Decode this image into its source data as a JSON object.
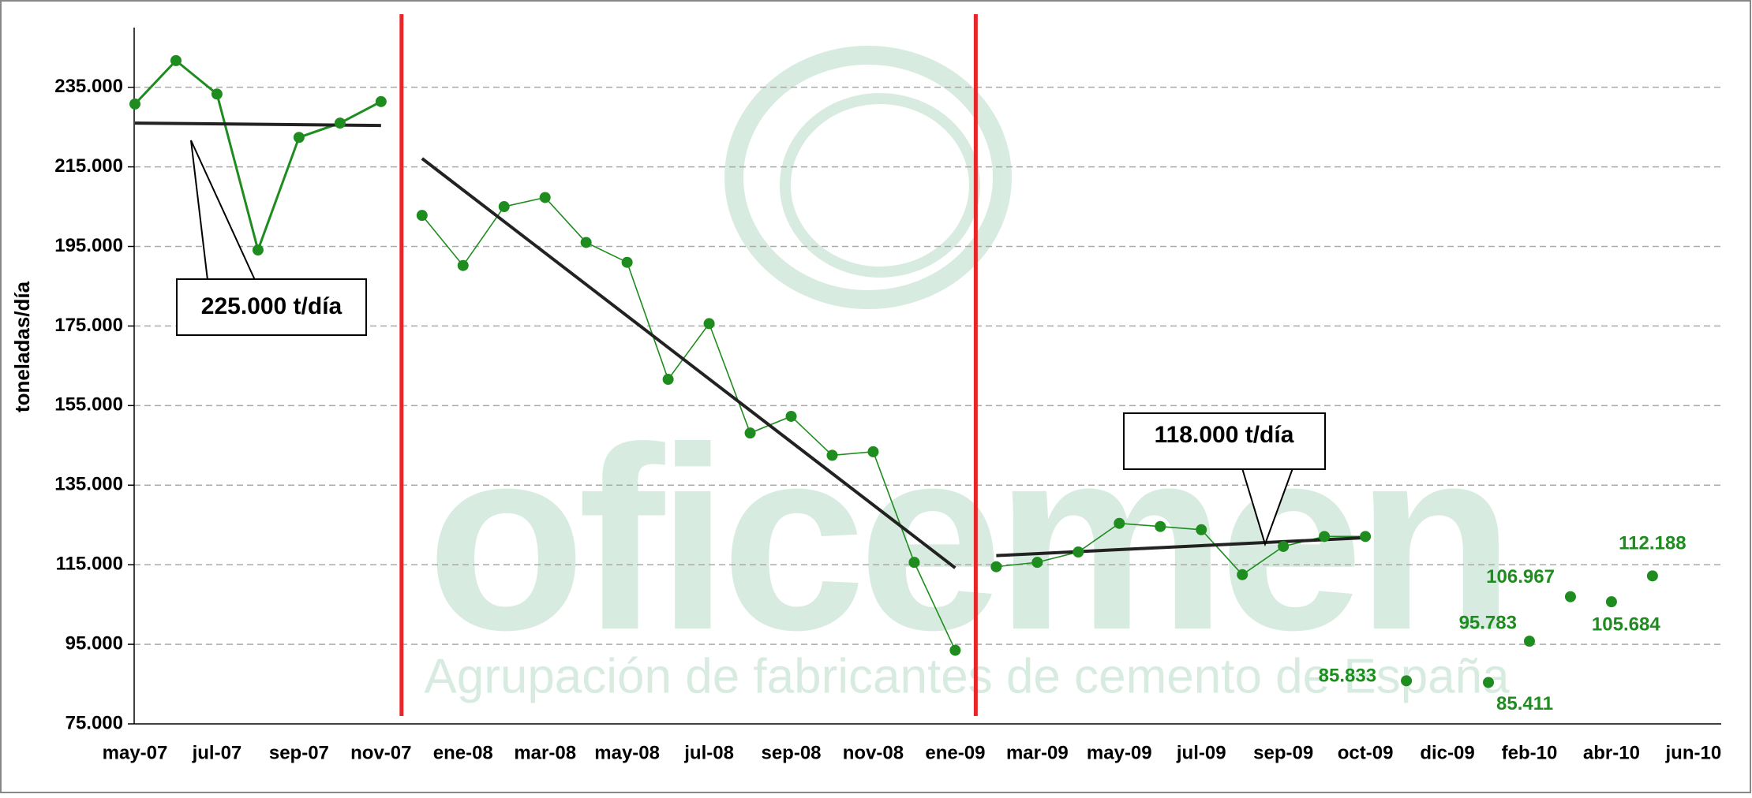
{
  "chart_data": {
    "type": "line",
    "y_label": "toneladas/día",
    "watermark": {
      "logo": "oficemen",
      "tagline": "Agrupación de fabricantes de cemento de España"
    },
    "categories": [
      "may-07",
      null,
      "jul-07",
      null,
      "sep-07",
      null,
      "nov-07",
      null,
      "ene-08",
      null,
      "mar-08",
      null,
      "may-08",
      null,
      "jul-08",
      null,
      "sep-08",
      null,
      "nov-08",
      null,
      "ene-09",
      null,
      "mar-09",
      null,
      "may-09",
      null,
      "jul-09",
      null,
      "sep-09",
      null,
      "oct-09",
      null,
      "dic-09",
      null,
      "feb-10",
      null,
      "abr-10",
      null,
      "jun-10"
    ],
    "series": [
      {
        "color": "#1e8c1e",
        "values": [
          230800,
          241700,
          233300,
          194100,
          222400,
          226000,
          231400,
          null,
          null,
          null,
          null,
          null,
          null,
          null,
          null,
          null,
          null,
          null,
          null,
          null,
          null,
          null,
          null,
          null,
          null,
          null,
          null,
          null,
          null,
          null,
          null,
          null,
          null,
          null,
          null,
          null,
          null,
          null,
          null
        ],
        "trend": [
          226000,
          225400
        ]
      },
      {
        "color": "#1e8c1e",
        "values": [
          null,
          null,
          null,
          null,
          null,
          null,
          null,
          202800,
          190200,
          205000,
          207300,
          196000,
          191000,
          161600,
          175600,
          148100,
          152300,
          142500,
          143400,
          115600,
          93500,
          null,
          null,
          null,
          null,
          null,
          null,
          null,
          null,
          null,
          null,
          null,
          null,
          null,
          null,
          null,
          null,
          null,
          null
        ],
        "trend": [
          217100,
          114200
        ]
      },
      {
        "color": "#1e8c1e",
        "values": [
          null,
          null,
          null,
          null,
          null,
          null,
          null,
          null,
          null,
          null,
          null,
          null,
          null,
          null,
          null,
          null,
          null,
          null,
          null,
          null,
          null,
          114500,
          115600,
          118200,
          125400,
          124600,
          123800,
          112500,
          119600,
          122100,
          122100,
          null,
          null,
          null,
          null,
          null,
          null,
          null,
          null
        ],
        "trend": [
          117300,
          121800
        ]
      },
      {
        "color": "#1e8c1e",
        "markers_only": true,
        "values": [
          null,
          null,
          null,
          null,
          null,
          null,
          null,
          null,
          null,
          null,
          null,
          null,
          null,
          null,
          null,
          null,
          null,
          null,
          null,
          null,
          null,
          null,
          null,
          null,
          null,
          null,
          null,
          null,
          null,
          null,
          null,
          85833,
          null,
          85411,
          95783,
          106967,
          105684,
          112188,
          null
        ],
        "value_labels": [
          null,
          null,
          null,
          null,
          null,
          null,
          null,
          null,
          null,
          null,
          null,
          null,
          null,
          null,
          null,
          null,
          null,
          null,
          null,
          null,
          null,
          null,
          null,
          null,
          null,
          null,
          null,
          null,
          null,
          null,
          null,
          "85.833",
          null,
          "85.411",
          "95.783",
          "106.967",
          "105.684",
          "112.188",
          null
        ]
      }
    ],
    "annotations": [
      "225.000 t/día",
      "118.000 t/día"
    ],
    "ylim": [
      75000,
      250000
    ],
    "yticks": [
      {
        "value": 75000,
        "label": "75.000"
      },
      {
        "value": 95000,
        "label": "95.000"
      },
      {
        "value": 115000,
        "label": "115.000"
      },
      {
        "value": 135000,
        "label": "135.000"
      },
      {
        "value": 155000,
        "label": "155.000"
      },
      {
        "value": 175000,
        "label": "175.000"
      },
      {
        "value": 195000,
        "label": "195.000"
      },
      {
        "value": 215000,
        "label": "215.000"
      },
      {
        "value": 235000,
        "label": "235.000"
      }
    ],
    "grid": true
  }
}
